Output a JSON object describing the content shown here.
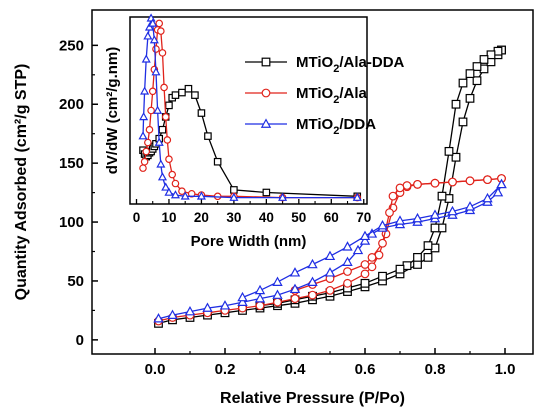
{
  "chart_data": [
    {
      "type": "line",
      "xlabel": "Relative Pressure (P/Po)",
      "ylabel": "Quantity Adsorbed (cm²/g STP)",
      "xlim": [
        -0.18,
        1.08
      ],
      "ylim": [
        -12,
        280
      ],
      "xticks": [
        "0.0",
        "0.2",
        "0.4",
        "0.6",
        "0.8",
        "1.0"
      ],
      "yticks": [
        "0",
        "50",
        "100",
        "150",
        "200",
        "250"
      ],
      "legend_position": "top-center",
      "series": [
        {
          "name": "MTiO2/Ala-DDA",
          "label_parts": [
            "MTiO",
            "2",
            "/Ala-DDA"
          ],
          "color": "#000000",
          "marker": "square",
          "adsorption": {
            "x": [
              0.01,
              0.05,
              0.1,
              0.15,
              0.2,
              0.25,
              0.3,
              0.35,
              0.4,
              0.45,
              0.5,
              0.55,
              0.6,
              0.65,
              0.7,
              0.75,
              0.78,
              0.8,
              0.82,
              0.84,
              0.86,
              0.88,
              0.9,
              0.92,
              0.94,
              0.96,
              0.98,
              0.99
            ],
            "y": [
              14,
              17,
              19,
              21,
              23,
              25,
              27,
              29,
              31,
              34,
              37,
              41,
              45,
              50,
              56,
              64,
              70,
              78,
              95,
              120,
              155,
              185,
              205,
              220,
              230,
              236,
              242,
              246
            ]
          },
          "desorption": {
            "x": [
              0.99,
              0.98,
              0.96,
              0.94,
              0.92,
              0.9,
              0.88,
              0.86,
              0.84,
              0.82,
              0.8,
              0.78,
              0.75,
              0.72,
              0.7,
              0.65,
              0.6,
              0.55,
              0.5,
              0.45,
              0.4,
              0.35,
              0.3
            ],
            "y": [
              246,
              245,
              242,
              238,
              232,
              226,
              218,
              200,
              160,
              122,
              95,
              80,
              70,
              63,
              60,
              54,
              48,
              44,
              40,
              37,
              34,
              31,
              29
            ]
          }
        },
        {
          "name": "MTiO2/Ala",
          "label_parts": [
            "MTiO",
            "2",
            "/Ala"
          ],
          "color": "#e0231b",
          "marker": "circle",
          "adsorption": {
            "x": [
              0.01,
              0.05,
              0.1,
              0.15,
              0.2,
              0.25,
              0.3,
              0.35,
              0.4,
              0.45,
              0.5,
              0.55,
              0.6,
              0.62,
              0.64,
              0.66,
              0.68,
              0.7,
              0.72,
              0.75,
              0.8,
              0.85,
              0.9,
              0.95,
              0.99
            ],
            "y": [
              16,
              19,
              21,
              23,
              25,
              27,
              29,
              32,
              35,
              38,
              42,
              48,
              56,
              62,
              72,
              90,
              112,
              125,
              130,
              132,
              133,
              134,
              135,
              136,
              137
            ]
          },
          "desorption": {
            "x": [
              0.99,
              0.95,
              0.9,
              0.85,
              0.8,
              0.75,
              0.72,
              0.7,
              0.68,
              0.67,
              0.65,
              0.62,
              0.6,
              0.55,
              0.5,
              0.45,
              0.4
            ],
            "y": [
              137,
              136,
              135,
              134,
              133,
              132,
              131,
              129,
              122,
              108,
              82,
              70,
              64,
              58,
              52,
              47,
              42
            ]
          }
        },
        {
          "name": "MTiO2/DDA",
          "label_parts": [
            "MTiO",
            "2",
            "/DDA"
          ],
          "color": "#1f2ee3",
          "marker": "triangle",
          "adsorption": {
            "x": [
              0.01,
              0.05,
              0.1,
              0.15,
              0.2,
              0.25,
              0.3,
              0.35,
              0.4,
              0.45,
              0.5,
              0.55,
              0.58,
              0.6,
              0.62,
              0.65,
              0.7,
              0.75,
              0.8,
              0.85,
              0.9,
              0.95,
              0.98,
              0.99
            ],
            "y": [
              18,
              21,
              24,
              27,
              29,
              32,
              35,
              38,
              43,
              49,
              57,
              66,
              76,
              84,
              90,
              95,
              98,
              100,
              103,
              106,
              110,
              117,
              125,
              132
            ]
          },
          "desorption": {
            "x": [
              0.99,
              0.95,
              0.9,
              0.85,
              0.8,
              0.75,
              0.7,
              0.65,
              0.6,
              0.55,
              0.5,
              0.45,
              0.4,
              0.35,
              0.3,
              0.25
            ],
            "y": [
              132,
              120,
              113,
              109,
              106,
              103,
              101,
              97,
              88,
              79,
              71,
              64,
              57,
              49,
              42,
              36
            ]
          }
        }
      ]
    },
    {
      "type": "line",
      "xlabel": "Pore Width (nm)",
      "ylabel": "dV/dW (cm²/g.nm)",
      "xlim": [
        -2,
        71
      ],
      "ylim": [
        127,
        273
      ],
      "xticks": [
        "0",
        "10",
        "20",
        "30",
        "40",
        "50",
        "60",
        "70"
      ],
      "yticks": [],
      "series": [
        {
          "name": "MTiO2/Ala-DDA",
          "x": [
            2,
            2.5,
            3,
            3.5,
            4,
            4.5,
            5,
            5.5,
            6,
            7,
            8,
            9,
            10,
            11,
            12,
            14,
            16,
            18,
            20,
            22,
            25,
            30,
            40,
            68
          ],
          "y": [
            169,
            166,
            164,
            165,
            167,
            168,
            170,
            172,
            174,
            178,
            185,
            195,
            204,
            210,
            212,
            214,
            217,
            212,
            198,
            180,
            160,
            138,
            136,
            133
          ]
        },
        {
          "name": "MTiO2/Ala",
          "x": [
            2,
            2.5,
            3,
            3.5,
            4,
            4.5,
            5,
            5.5,
            6,
            6.5,
            7,
            7.5,
            8,
            8.5,
            9,
            9.5,
            10,
            11,
            12,
            14,
            17,
            20,
            25,
            30,
            45,
            68
          ],
          "y": [
            155,
            160,
            168,
            175,
            185,
            200,
            215,
            232,
            248,
            263,
            268,
            262,
            245,
            218,
            195,
            177,
            162,
            150,
            143,
            137,
            135,
            134,
            133,
            133,
            132,
            132
          ]
        },
        {
          "name": "MTiO2/DDA",
          "x": [
            2,
            2.2,
            2.5,
            3,
            3.5,
            4,
            4.5,
            5,
            5.5,
            6,
            6.5,
            7,
            7.5,
            8,
            9,
            10,
            12,
            15,
            20,
            30,
            45,
            68
          ],
          "y": [
            180,
            195,
            215,
            240,
            258,
            265,
            272,
            268,
            255,
            230,
            200,
            175,
            158,
            148,
            140,
            136,
            134,
            133,
            133,
            132,
            132,
            132
          ]
        }
      ]
    }
  ]
}
